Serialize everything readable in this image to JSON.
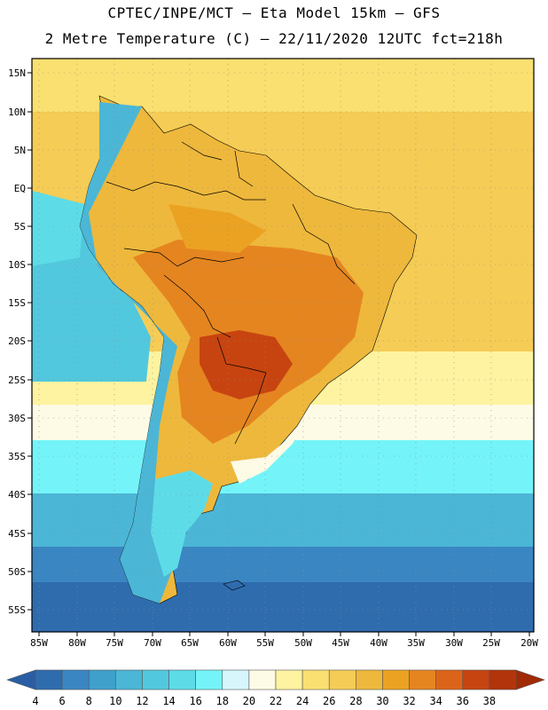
{
  "header": {
    "line1": "CPTEC/INPE/MCT –  Eta Model 15km – GFS",
    "line2": "2 Metre Temperature (C) – 22/11/2020 12UTC fct=218h"
  },
  "axes": {
    "lat_labels": [
      "15N",
      "10N",
      "5N",
      "EQ",
      "5S",
      "10S",
      "15S",
      "20S",
      "25S",
      "30S",
      "35S",
      "40S",
      "45S",
      "50S",
      "55S"
    ],
    "lon_labels": [
      "85W",
      "80W",
      "75W",
      "70W",
      "65W",
      "60W",
      "55W",
      "50W",
      "45W",
      "40W",
      "35W",
      "30W",
      "25W",
      "20W"
    ]
  },
  "colorbar": {
    "labels": [
      "4",
      "6",
      "8",
      "10",
      "12",
      "14",
      "16",
      "18",
      "20",
      "22",
      "24",
      "26",
      "28",
      "30",
      "32",
      "34",
      "36",
      "38"
    ],
    "colors": [
      "#2f6cae",
      "#3a86c2",
      "#3fa0cc",
      "#4bb6d6",
      "#52c8de",
      "#5ddce8",
      "#74f4f8",
      "#d6f6fb",
      "#fdfae6",
      "#fdf3a0",
      "#f9e070",
      "#f5cc55",
      "#eeb83c",
      "#eba222",
      "#e58520",
      "#dc6418",
      "#c74410",
      "#b2340a"
    ],
    "under_color": "#2a5ea4",
    "over_color": "#a02a06"
  },
  "map_colors": {
    "ocean_cold": "#2f6cae",
    "ocean_cool": "#4bb6d6",
    "ocean_mid": "#74f4f8",
    "ocean_warm": "#fdf3a0",
    "ocean_tropical": "#f5cc55",
    "land_warm": "#eeb83c",
    "land_hot": "#e58520",
    "land_hottest": "#c74410",
    "andes": "#4bb6d6",
    "border": "#000000"
  }
}
